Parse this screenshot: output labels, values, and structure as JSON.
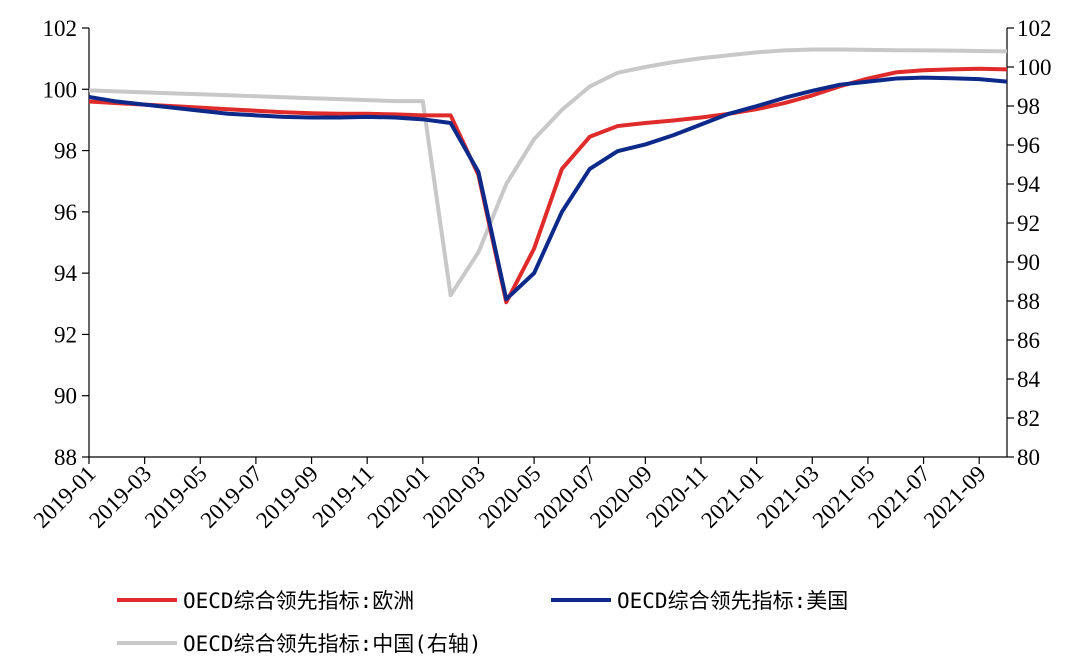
{
  "chart_data": {
    "type": "line",
    "title": "",
    "xlabel": "",
    "ylabel": "",
    "x": [
      "2019-01",
      "2019-02",
      "2019-03",
      "2019-04",
      "2019-05",
      "2019-06",
      "2019-07",
      "2019-08",
      "2019-09",
      "2019-10",
      "2019-11",
      "2019-12",
      "2020-01",
      "2020-02",
      "2020-03",
      "2020-04",
      "2020-05",
      "2020-06",
      "2020-07",
      "2020-08",
      "2020-09",
      "2020-10",
      "2020-11",
      "2020-12",
      "2021-01",
      "2021-02",
      "2021-03",
      "2021-04",
      "2021-05",
      "2021-06",
      "2021-07",
      "2021-08",
      "2021-09",
      "2021-10"
    ],
    "x_tick_labels": [
      "2019-01",
      "2019-03",
      "2019-05",
      "2019-07",
      "2019-09",
      "2019-11",
      "2020-01",
      "2020-03",
      "2020-05",
      "2020-07",
      "2020-09",
      "2020-11",
      "2021-01",
      "2021-03",
      "2021-05",
      "2021-07",
      "2021-09"
    ],
    "left_axis": {
      "ylim": [
        88,
        102
      ],
      "ticks": [
        "88",
        "90",
        "92",
        "94",
        "96",
        "98",
        "100",
        "102"
      ]
    },
    "right_axis": {
      "ylim": [
        80,
        102
      ],
      "ticks": [
        "80",
        "82",
        "84",
        "86",
        "88",
        "90",
        "92",
        "94",
        "96",
        "98",
        "100",
        "102"
      ]
    },
    "grid": false,
    "legend_placement": "bottom",
    "series": [
      {
        "name": "OECD综合领先指标:欧洲",
        "axis": "left",
        "color": "#e02b2b",
        "values": [
          99.6,
          99.55,
          99.5,
          99.45,
          99.4,
          99.35,
          99.3,
          99.25,
          99.22,
          99.2,
          99.2,
          99.18,
          99.15,
          99.15,
          97.2,
          93.05,
          94.8,
          97.4,
          98.45,
          98.8,
          98.9,
          98.98,
          99.08,
          99.2,
          99.35,
          99.55,
          99.8,
          100.1,
          100.35,
          100.55,
          100.62,
          100.65,
          100.67,
          100.65
        ]
      },
      {
        "name": "OECD综合领先指标:美国",
        "axis": "left",
        "color": "#0d2a8a",
        "values": [
          99.75,
          99.6,
          99.5,
          99.4,
          99.3,
          99.2,
          99.15,
          99.1,
          99.08,
          99.08,
          99.1,
          99.08,
          99.02,
          98.9,
          97.3,
          93.15,
          94.0,
          96.0,
          97.4,
          97.98,
          98.2,
          98.5,
          98.85,
          99.2,
          99.45,
          99.72,
          99.95,
          100.15,
          100.25,
          100.35,
          100.38,
          100.36,
          100.33,
          100.25
        ]
      },
      {
        "name": "OECD综合领先指标:中国(右轴)",
        "axis": "right",
        "color": "#c8c8c8",
        "values": [
          98.8,
          98.75,
          98.7,
          98.65,
          98.6,
          98.55,
          98.5,
          98.45,
          98.4,
          98.35,
          98.3,
          98.25,
          98.25,
          88.3,
          90.5,
          94.0,
          96.3,
          97.8,
          99.0,
          99.7,
          100.0,
          100.25,
          100.45,
          100.6,
          100.75,
          100.85,
          100.9,
          100.9,
          100.88,
          100.86,
          100.85,
          100.84,
          100.82,
          100.8
        ]
      }
    ]
  }
}
